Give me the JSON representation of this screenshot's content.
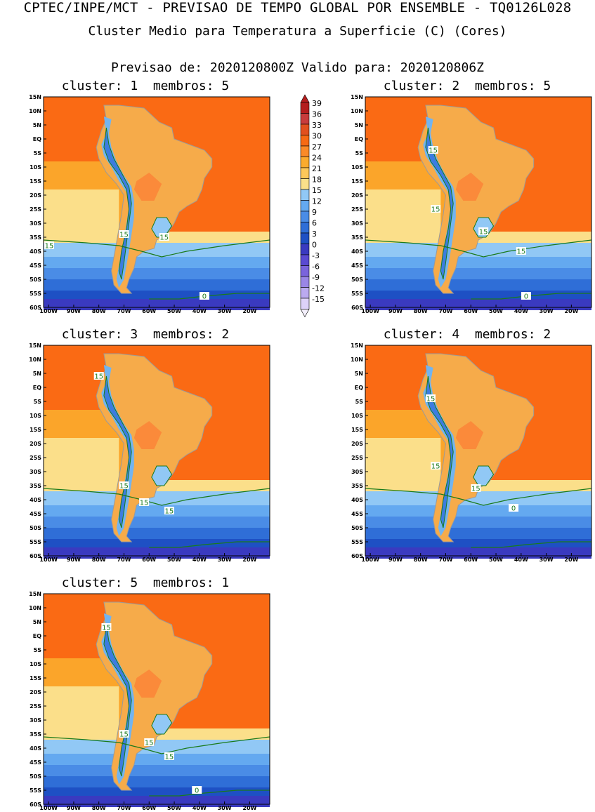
{
  "header": {
    "line1": "CPTEC/INPE/MCT - PREVISAO DE TEMPO GLOBAL POR ENSEMBLE - TQ0126L028",
    "line2": "Cluster Medio para Temperatura a Superficie (C) (Cores)",
    "line3": "Previsao de: 2020120800Z    Valido para: 2020120806Z"
  },
  "colors": {
    "ocean_far": "#fa6a14",
    "ocean_mid": "#fba52a",
    "land_warm": "#f6ab4a",
    "land_hot": "#fb8a3a",
    "cool_15": "#fbdf8a",
    "andes_12": "#72b4f0",
    "andes_6": "#3c7ce0",
    "contour": "#1a7a1a",
    "coast": "#9a9a9a"
  },
  "map_axes": {
    "lat_labels": [
      "15N",
      "10N",
      "5N",
      "EQ",
      "5S",
      "10S",
      "15S",
      "20S",
      "25S",
      "30S",
      "35S",
      "40S",
      "45S",
      "50S",
      "55S",
      "60S"
    ],
    "lon_labels": [
      "100W",
      "90W",
      "80W",
      "70W",
      "60W",
      "50W",
      "40W",
      "30W",
      "20W"
    ]
  },
  "clusters": [
    {
      "label": "cluster:",
      "number": "1",
      "members_label": "membros:",
      "members": "5",
      "contour_labels": [
        "15",
        "15",
        "15",
        "0"
      ]
    },
    {
      "label": "cluster:",
      "number": "2",
      "members_label": "membros:",
      "members": "5",
      "contour_labels": [
        "15",
        "15",
        "15",
        "15",
        "0"
      ]
    },
    {
      "label": "cluster:",
      "number": "3",
      "members_label": "membros:",
      "members": "2",
      "contour_labels": [
        "15",
        "15",
        "15",
        "15"
      ]
    },
    {
      "label": "cluster:",
      "number": "4",
      "members_label": "membros:",
      "members": "2",
      "contour_labels": [
        "15",
        "15",
        "15",
        "0"
      ]
    },
    {
      "label": "cluster:",
      "number": "5",
      "members_label": "membros:",
      "members": "1",
      "contour_labels": [
        "15",
        "15",
        "15",
        "15",
        "0"
      ]
    }
  ],
  "colorbar": {
    "labels": [
      "39",
      "36",
      "33",
      "30",
      "27",
      "24",
      "21",
      "18",
      "15",
      "12",
      "9",
      "6",
      "3",
      "0",
      "-3",
      "-6",
      "-9",
      "-12",
      "-15"
    ],
    "colors": [
      "#b41e1e",
      "#c83c3c",
      "#e1501e",
      "#f66a14",
      "#fa8a28",
      "#fbab2e",
      "#fdc85a",
      "#fbe08a",
      "#91c8f5",
      "#64a9f0",
      "#4a8ce6",
      "#2f6ed7",
      "#1e50c4",
      "#3a3ac0",
      "#5a4ad2",
      "#7a64dc",
      "#9a86e6",
      "#bbaaf0",
      "#ddd2f8"
    ]
  }
}
